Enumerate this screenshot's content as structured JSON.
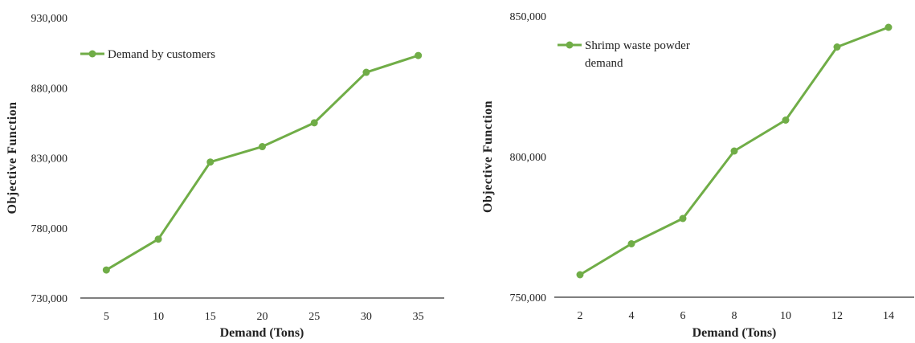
{
  "chart_data": [
    {
      "type": "line",
      "categories": [
        "5",
        "10",
        "15",
        "20",
        "25",
        "30",
        "35"
      ],
      "series": [
        {
          "name": "Demand by customers",
          "values": [
            750000,
            772000,
            827000,
            838000,
            855000,
            891000,
            903000
          ]
        }
      ],
      "xlabel": "Demand (Tons)",
      "ylabel": "Objective Function",
      "ylim": [
        730000,
        930000
      ],
      "yticks": [
        "730,000",
        "780,000",
        "830,000",
        "880,000",
        "930,000"
      ],
      "legend": [
        "Demand by customers"
      ],
      "legend_position": "top-left",
      "grid": false,
      "color": "#70AD47"
    },
    {
      "type": "line",
      "categories": [
        "2",
        "4",
        "6",
        "8",
        "10",
        "12",
        "14"
      ],
      "series": [
        {
          "name": "Shrimp waste powder demand",
          "values": [
            758000,
            769000,
            778000,
            802000,
            813000,
            839000,
            846000
          ]
        }
      ],
      "xlabel": "Demand (Tons)",
      "ylabel": "Objective Function",
      "ylim": [
        750000,
        850000
      ],
      "yticks": [
        "750,000",
        "800,000",
        "850,000"
      ],
      "legend": [
        "Shrimp waste powder",
        "demand"
      ],
      "legend_position": "top-left",
      "grid": false,
      "color": "#70AD47"
    }
  ]
}
